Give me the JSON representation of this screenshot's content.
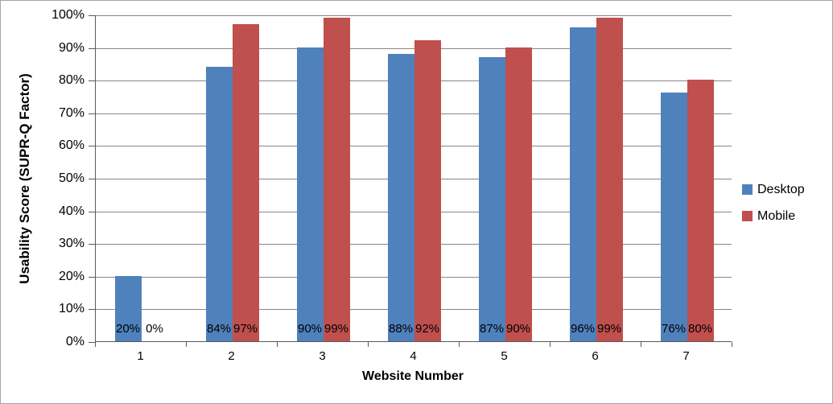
{
  "chart_data": {
    "type": "bar",
    "title": "",
    "xlabel": "Website Number",
    "ylabel": "Usability Score (SUPR-Q Factor)",
    "categories": [
      "1",
      "2",
      "3",
      "4",
      "5",
      "6",
      "7"
    ],
    "series": [
      {
        "name": "Desktop",
        "color": "#4F81BD",
        "values": [
          20,
          84,
          90,
          88,
          87,
          96,
          76
        ],
        "labels": [
          "20%",
          "84%",
          "90%",
          "88%",
          "87%",
          "96%",
          "76%"
        ]
      },
      {
        "name": "Mobile",
        "color": "#C0504D",
        "values": [
          0,
          97,
          99,
          92,
          90,
          99,
          80
        ],
        "labels": [
          "0%",
          "97%",
          "99%",
          "92%",
          "90%",
          "99%",
          "80%"
        ]
      }
    ],
    "ylim": [
      0,
      100
    ],
    "ytick_step": 10,
    "y_tick_labels": [
      "0%",
      "10%",
      "20%",
      "30%",
      "40%",
      "50%",
      "60%",
      "70%",
      "80%",
      "90%",
      "100%"
    ],
    "grid": true,
    "legend_position": "right",
    "data_labels_position": "inside-base"
  },
  "colors": {
    "gridline": "#878787",
    "axis_line": "#595959",
    "frame_border": "#A6A6A6",
    "background": "#FFFFFF",
    "text": "#000000"
  }
}
